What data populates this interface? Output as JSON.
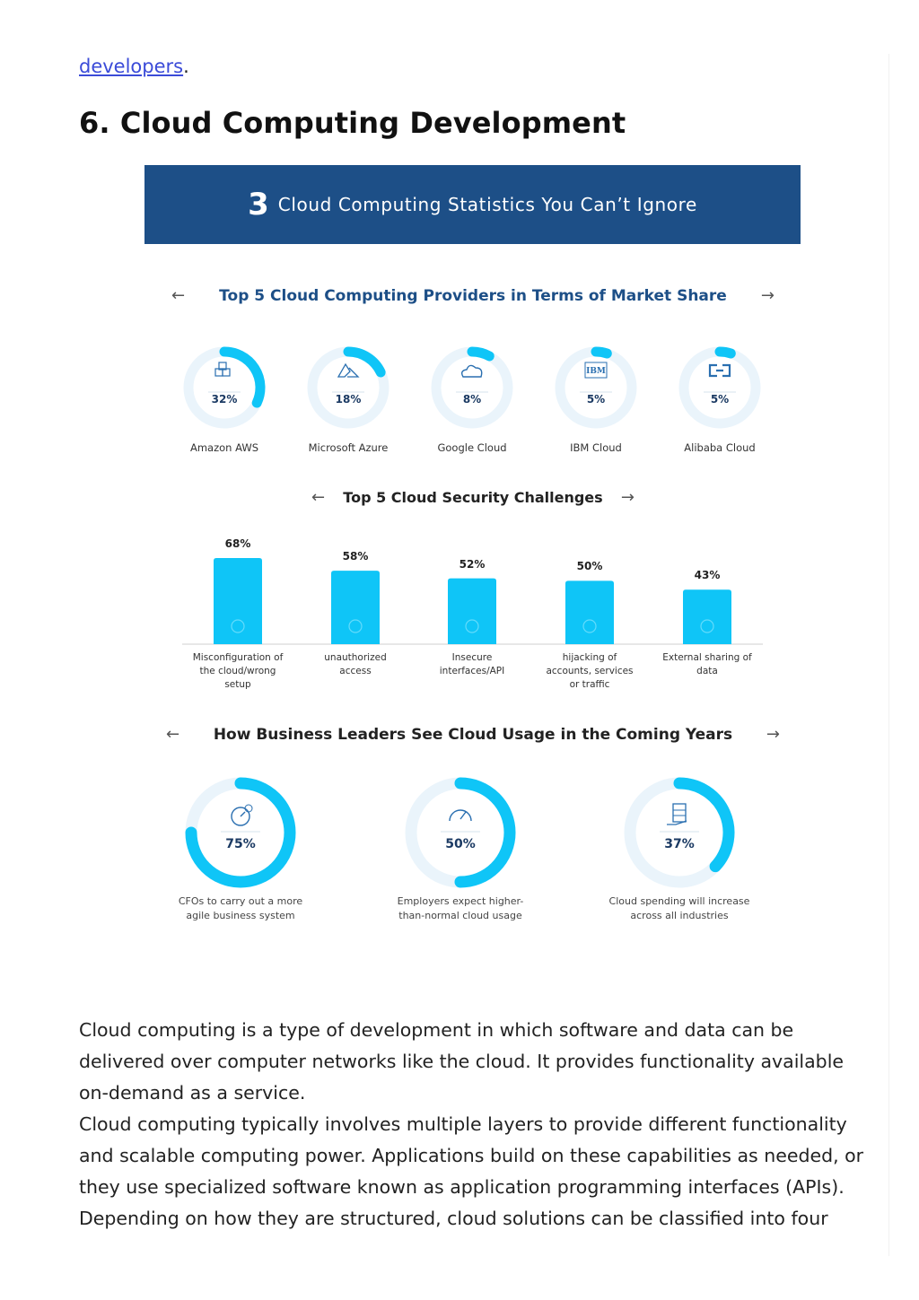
{
  "top_link": {
    "text": "developers",
    "after": "."
  },
  "heading": "6. Cloud Computing Development",
  "infographic": {
    "banner": {
      "number": "3",
      "text": "Cloud Computing Statistics You Can’t Ignore"
    },
    "arrow_left": "←",
    "arrow_right": "→",
    "section1": {
      "title": "Top 5 Cloud Computing Providers in Terms of Market Share",
      "providers": [
        {
          "name": "Amazon AWS",
          "label": "32%",
          "value": 32,
          "icon": "cubes-icon"
        },
        {
          "name": "Microsoft Azure",
          "label": "18%",
          "value": 18,
          "icon": "azure-logo-icon"
        },
        {
          "name": "Google Cloud",
          "label": "8%",
          "value": 8,
          "icon": "cloud-icon"
        },
        {
          "name": "IBM Cloud",
          "label": "5%",
          "value": 5,
          "icon": "ibm-logo-icon",
          "icon_text": "IBM"
        },
        {
          "name": "Alibaba Cloud",
          "label": "5%",
          "value": 5,
          "icon": "alibaba-logo-icon"
        }
      ]
    },
    "section2": {
      "title": "Top 5 Cloud Security Challenges",
      "bars": [
        {
          "label": "68%",
          "value": 68,
          "caption": [
            "Misconfiguration of",
            "the cloud/wrong",
            "setup"
          ],
          "icon": "document-icon"
        },
        {
          "label": "58%",
          "value": 58,
          "caption": [
            "unauthorized",
            "access"
          ],
          "icon": "lock-icon"
        },
        {
          "label": "52%",
          "value": 52,
          "caption": [
            "Insecure",
            "interfaces/API"
          ],
          "icon": "api-icon"
        },
        {
          "label": "50%",
          "value": 50,
          "caption": [
            "hijacking of",
            "accounts, services",
            "or traffic"
          ],
          "icon": "key-icon"
        },
        {
          "label": "43%",
          "value": 43,
          "caption": [
            "External sharing of",
            "data"
          ],
          "icon": "share-icon"
        }
      ]
    },
    "section3": {
      "title": "How Business Leaders See Cloud Usage in the Coming Years",
      "items": [
        {
          "label": "75%",
          "value": 75,
          "caption": [
            "CFOs to carry out a more",
            "agile business system"
          ],
          "icon": "gauge-clock-icon"
        },
        {
          "label": "50%",
          "value": 50,
          "caption": [
            "Employers expect higher-",
            "than-normal cloud usage"
          ],
          "icon": "speedometer-icon"
        },
        {
          "label": "37%",
          "value": 37,
          "caption": [
            "Cloud spending will increase",
            "across all industries"
          ],
          "icon": "server-hand-icon"
        }
      ]
    },
    "colors": {
      "banner": "#1d4f87",
      "accent": "#0fc5f7",
      "track": "#eaf4fb",
      "title_blue": "#1d4f87"
    }
  },
  "body": {
    "paragraph1": "Cloud computing is a type of development in which software and data can be delivered over computer networks like the cloud. It provides functionality available on-demand as a service.",
    "paragraph2": "Cloud computing typically involves multiple layers to provide different functionality and scalable computing power. Applications build on these capabilities as needed, or they use specialized software known as application programming interfaces (APIs). Depending on how they are structured, cloud solutions can be classified into four"
  }
}
